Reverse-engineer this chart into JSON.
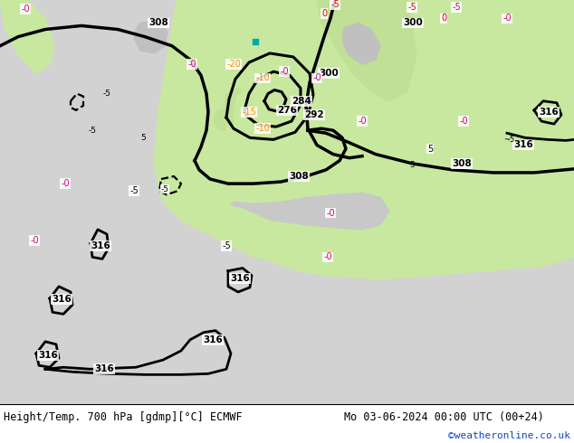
{
  "title_left": "Height/Temp. 700 hPa [gdmp][°C] ECMWF",
  "title_right": "Mo 03-06-2024 00:00 UTC (00+24)",
  "credit": "©weatheronline.co.uk",
  "fig_width": 6.34,
  "fig_height": 4.9,
  "dpi": 100,
  "bg_ocean": "#d0d0d0",
  "bg_land": "#c8e8a0",
  "bg_land2": "#b8dc90"
}
